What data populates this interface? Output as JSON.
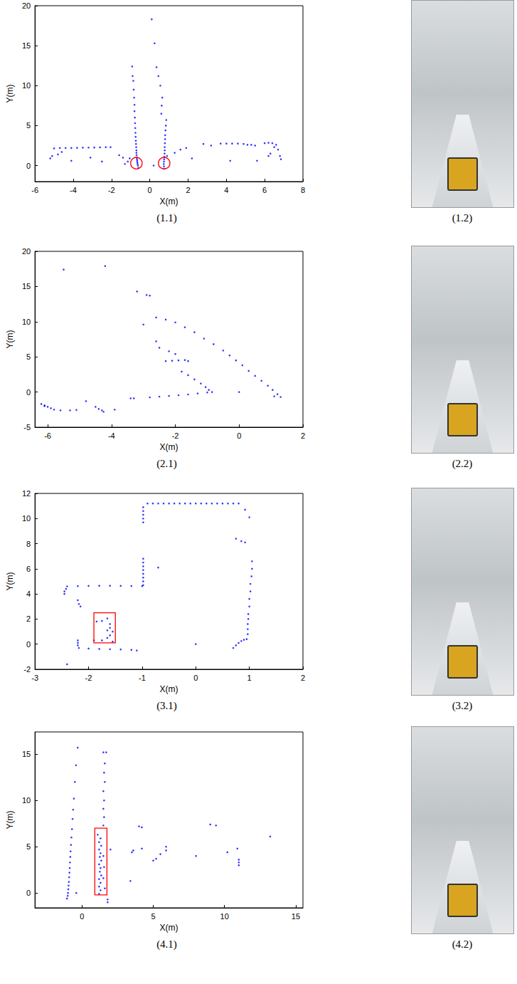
{
  "chart_data": [
    {
      "type": "scatter",
      "caption": "(1.1)",
      "x_label": "X(m)",
      "y_label": "Y(m)",
      "xlim": [
        -6,
        8
      ],
      "xticks": [
        -6,
        -4,
        -2,
        0,
        2,
        4,
        6,
        8
      ],
      "ylim": [
        -2,
        20
      ],
      "yticks": [
        0,
        5,
        10,
        15,
        20
      ],
      "grid": false,
      "color": "#0000ff",
      "marker": "dot",
      "points": [
        [
          -0.6,
          -0.3
        ],
        [
          -0.62,
          0
        ],
        [
          -0.64,
          0.2
        ],
        [
          -0.65,
          0.4
        ],
        [
          -0.66,
          0.6
        ],
        [
          -0.67,
          0.8
        ],
        [
          -0.68,
          1.0
        ],
        [
          -0.69,
          1.3
        ],
        [
          -0.7,
          1.6
        ],
        [
          -0.7,
          1.9
        ],
        [
          -0.71,
          2.3
        ],
        [
          -0.72,
          2.7
        ],
        [
          -0.73,
          3.1
        ],
        [
          -0.74,
          3.6
        ],
        [
          -0.75,
          4.1
        ],
        [
          -0.76,
          4.7
        ],
        [
          -0.77,
          5.3
        ],
        [
          -0.78,
          6
        ],
        [
          -0.8,
          6.8
        ],
        [
          -0.8,
          7.6
        ],
        [
          -0.82,
          8.5
        ],
        [
          -0.84,
          9.5
        ],
        [
          -0.86,
          10.6
        ],
        [
          -0.9,
          11.2
        ],
        [
          -0.92,
          12.4
        ],
        [
          0.75,
          -0.4
        ],
        [
          0.74,
          -0.1
        ],
        [
          0.73,
          0.2
        ],
        [
          0.74,
          0.5
        ],
        [
          0.75,
          0.8
        ],
        [
          0.76,
          1.1
        ],
        [
          0.77,
          1.5
        ],
        [
          0.78,
          1.9
        ],
        [
          0.78,
          2.3
        ],
        [
          0.79,
          2.8
        ],
        [
          0.8,
          3.3
        ],
        [
          0.8,
          3.8
        ],
        [
          0.82,
          4.4
        ],
        [
          0.84,
          5.0
        ],
        [
          0.86,
          5.7
        ],
        [
          0.6,
          6.5
        ],
        [
          0.62,
          7.5
        ],
        [
          0.65,
          8.5
        ],
        [
          0.55,
          10.0
        ],
        [
          0.45,
          11.2
        ],
        [
          0.35,
          12.3
        ],
        [
          0.25,
          15.3
        ],
        [
          0.1,
          18.3
        ],
        [
          -5,
          2.15
        ],
        [
          -4.7,
          2.2
        ],
        [
          -4.4,
          2.2
        ],
        [
          -4.1,
          2.2
        ],
        [
          -3.8,
          2.22
        ],
        [
          -3.5,
          2.24
        ],
        [
          -3.2,
          2.25
        ],
        [
          -2.9,
          2.26
        ],
        [
          -2.6,
          2.28
        ],
        [
          -2.3,
          2.3
        ],
        [
          -2.05,
          2.3
        ],
        [
          -5.1,
          1.2
        ],
        [
          -5.2,
          0.9
        ],
        [
          -4.8,
          1.4
        ],
        [
          -4.6,
          1.7
        ],
        [
          -4.1,
          0.6
        ],
        [
          -3.1,
          1.0
        ],
        [
          -2.5,
          0.5
        ],
        [
          -1.6,
          1.3
        ],
        [
          -1.4,
          1.0
        ],
        [
          -1.3,
          0.2
        ],
        [
          -1.15,
          0.5
        ],
        [
          -1.05,
          0.9
        ],
        [
          0.9,
          1.2
        ],
        [
          1.3,
          1.6
        ],
        [
          1.6,
          2.0
        ],
        [
          1.9,
          2.2
        ],
        [
          2.8,
          2.7
        ],
        [
          3.2,
          2.5
        ],
        [
          3.7,
          2.75
        ],
        [
          4,
          2.75
        ],
        [
          4.3,
          2.75
        ],
        [
          4.6,
          2.75
        ],
        [
          4.9,
          2.7
        ],
        [
          5.1,
          2.6
        ],
        [
          5.3,
          2.6
        ],
        [
          5.5,
          2.5
        ],
        [
          4.2,
          0.6
        ],
        [
          5.6,
          0.6
        ],
        [
          6,
          2.8
        ],
        [
          6.2,
          2.85
        ],
        [
          6.4,
          2.8
        ],
        [
          6.5,
          2.3
        ],
        [
          6.6,
          2.6
        ],
        [
          6.7,
          2.0
        ],
        [
          6.8,
          1.2
        ],
        [
          6.85,
          0.8
        ],
        [
          6.3,
          1.5
        ],
        [
          6.2,
          1.2
        ],
        [
          2.2,
          0.9
        ],
        [
          0.2,
          0.0
        ]
      ],
      "highlights": [
        {
          "shape": "circle",
          "color": "#ff0000",
          "x": -0.7,
          "y": 0.3,
          "r": 0.3
        },
        {
          "shape": "circle",
          "color": "#ff0000",
          "x": 0.75,
          "y": 0.3,
          "r": 0.3
        }
      ]
    },
    {
      "type": "scatter",
      "caption": "(2.1)",
      "x_label": "X(m)",
      "y_label": "Y(m)",
      "xlim": [
        -6.4,
        2
      ],
      "xticks": [
        -6,
        -4,
        -2,
        0,
        2
      ],
      "ylim": [
        -5,
        20
      ],
      "yticks": [
        -5,
        0,
        5,
        10,
        15,
        20
      ],
      "grid": false,
      "color": "#0000ff",
      "marker": "dot",
      "points": [
        [
          -2.6,
          10.6
        ],
        [
          -2.3,
          10.3
        ],
        [
          -2.0,
          9.9
        ],
        [
          -1.7,
          9.2
        ],
        [
          -1.4,
          8.5
        ],
        [
          -1.1,
          7.6
        ],
        [
          -0.8,
          6.8
        ],
        [
          -0.5,
          5.9
        ],
        [
          -0.3,
          5.2
        ],
        [
          -0.1,
          4.5
        ],
        [
          0.1,
          3.8
        ],
        [
          0.3,
          3.0
        ],
        [
          0.5,
          2.3
        ],
        [
          0.7,
          1.6
        ],
        [
          0.9,
          0.9
        ],
        [
          1.05,
          0.3
        ],
        [
          1.2,
          -0.3
        ],
        [
          1.3,
          -0.7
        ],
        [
          1.1,
          -0.6
        ],
        [
          -1.8,
          2.9
        ],
        [
          -1.6,
          2.4
        ],
        [
          -1.4,
          1.8
        ],
        [
          -1.2,
          1.2
        ],
        [
          -1.05,
          0.7
        ],
        [
          -0.95,
          0.3
        ],
        [
          -0.85,
          0.0
        ],
        [
          -2.3,
          4.4
        ],
        [
          -2.1,
          4.45
        ],
        [
          -1.9,
          4.5
        ],
        [
          -1.7,
          4.55
        ],
        [
          -1.6,
          4.4
        ],
        [
          -2.5,
          6.3
        ],
        [
          -2.2,
          5.8
        ],
        [
          -2.0,
          5.4
        ],
        [
          -2.6,
          7.2
        ],
        [
          -3.0,
          9.6
        ],
        [
          -2.9,
          13.8
        ],
        [
          -3.2,
          14.3
        ],
        [
          -2.8,
          13.7
        ],
        [
          -4.2,
          17.9
        ],
        [
          -5.5,
          17.4
        ],
        [
          -3.3,
          -0.9
        ],
        [
          -2.8,
          -0.75
        ],
        [
          -2.5,
          -0.65
        ],
        [
          -2.2,
          -0.55
        ],
        [
          -1.9,
          -0.45
        ],
        [
          -1.6,
          -0.35
        ],
        [
          -1.3,
          -0.2
        ],
        [
          -1.0,
          -0.05
        ],
        [
          0,
          0
        ],
        [
          -6.2,
          -1.7
        ],
        [
          -6.1,
          -1.9
        ],
        [
          -6.0,
          -2.1
        ],
        [
          -5.9,
          -2.3
        ],
        [
          -5.8,
          -2.5
        ],
        [
          -5.6,
          -2.6
        ],
        [
          -5.3,
          -2.6
        ],
        [
          -5.1,
          -2.55
        ],
        [
          -4.8,
          -1.3
        ],
        [
          -4.5,
          -2.1
        ],
        [
          -4.4,
          -2.4
        ],
        [
          -4.3,
          -2.6
        ],
        [
          -4.25,
          -2.8
        ],
        [
          -3.9,
          -2.5
        ],
        [
          -3.4,
          -0.9
        ],
        [
          -6.1,
          -2.0
        ]
      ],
      "highlights": []
    },
    {
      "type": "scatter",
      "caption": "(3.1)",
      "x_label": "X(m)",
      "y_label": "Y(m)",
      "xlim": [
        -3,
        2
      ],
      "xticks": [
        -3,
        -2,
        -1,
        0,
        1,
        2
      ],
      "ylim": [
        -2,
        12
      ],
      "yticks": [
        -2,
        0,
        2,
        4,
        6,
        8,
        10,
        12
      ],
      "grid": false,
      "color": "#0000ff",
      "marker": "dot",
      "points": [
        [
          -0.9,
          11.2
        ],
        [
          -0.8,
          11.2
        ],
        [
          -0.7,
          11.2
        ],
        [
          -0.6,
          11.2
        ],
        [
          -0.5,
          11.2
        ],
        [
          -0.4,
          11.2
        ],
        [
          -0.3,
          11.2
        ],
        [
          -0.2,
          11.2
        ],
        [
          -0.1,
          11.2
        ],
        [
          0,
          11.2
        ],
        [
          0.1,
          11.2
        ],
        [
          0.2,
          11.2
        ],
        [
          0.3,
          11.2
        ],
        [
          0.4,
          11.2
        ],
        [
          0.5,
          11.2
        ],
        [
          0.6,
          11.2
        ],
        [
          0.7,
          11.2
        ],
        [
          0.8,
          11.2
        ],
        [
          0.92,
          10.7
        ],
        [
          1.0,
          10.1
        ],
        [
          -0.98,
          4.7
        ],
        [
          -0.98,
          5.0
        ],
        [
          -0.98,
          5.3
        ],
        [
          -0.98,
          5.6
        ],
        [
          -0.98,
          5.9
        ],
        [
          -0.98,
          6.2
        ],
        [
          -0.98,
          6.5
        ],
        [
          -0.98,
          6.8
        ],
        [
          -0.98,
          9.7
        ],
        [
          -0.98,
          10.0
        ],
        [
          -0.98,
          10.3
        ],
        [
          -0.98,
          10.6
        ],
        [
          -0.98,
          10.9
        ],
        [
          -2.4,
          4.6
        ],
        [
          -2.2,
          4.62
        ],
        [
          -2.0,
          4.64
        ],
        [
          -1.8,
          4.65
        ],
        [
          -1.6,
          4.65
        ],
        [
          -1.4,
          4.64
        ],
        [
          -1.2,
          4.63
        ],
        [
          -1.0,
          4.62
        ],
        [
          -2.45,
          4.0
        ],
        [
          -2.45,
          4.2
        ],
        [
          -2.42,
          4.4
        ],
        [
          -2.4,
          -1.6
        ],
        [
          -0.7,
          6.1
        ],
        [
          -2.2,
          3.5
        ],
        [
          -2.18,
          3.2
        ],
        [
          -2.15,
          3.0
        ],
        [
          -2.2,
          0.3
        ],
        [
          -2.2,
          0.1
        ],
        [
          -2.2,
          -0.1
        ],
        [
          -2.18,
          -0.3
        ],
        [
          -2.0,
          -0.35
        ],
        [
          -1.8,
          -0.38
        ],
        [
          -1.6,
          -0.4
        ],
        [
          -1.4,
          -0.42
        ],
        [
          -1.2,
          -0.45
        ],
        [
          -1.1,
          -0.5
        ],
        [
          -1.85,
          1.8
        ],
        [
          -1.75,
          1.85
        ],
        [
          -1.65,
          2.05
        ],
        [
          -1.6,
          1.6
        ],
        [
          -1.6,
          1.3
        ],
        [
          -1.55,
          1.0
        ],
        [
          -1.6,
          0.7
        ],
        [
          -1.65,
          0.5
        ],
        [
          -1.55,
          0.2
        ],
        [
          -1.9,
          0.3
        ],
        [
          -1.75,
          0.3
        ],
        [
          -1.65,
          1.1
        ],
        [
          0.7,
          -0.3
        ],
        [
          0.75,
          -0.1
        ],
        [
          0.8,
          0.1
        ],
        [
          0.85,
          0.25
        ],
        [
          0.9,
          0.35
        ],
        [
          0.95,
          0.4
        ],
        [
          0.97,
          0.8
        ],
        [
          0.97,
          1.2
        ],
        [
          0.97,
          1.6
        ],
        [
          0.98,
          2.0
        ],
        [
          0.98,
          2.4
        ],
        [
          1.0,
          3.0
        ],
        [
          1.0,
          3.6
        ],
        [
          1.02,
          4.2
        ],
        [
          1.02,
          4.8
        ],
        [
          1.04,
          5.4
        ],
        [
          1.05,
          6.0
        ],
        [
          1.05,
          6.6
        ],
        [
          0.75,
          8.4
        ],
        [
          0.85,
          8.2
        ],
        [
          0.92,
          8.1
        ],
        [
          0,
          0
        ]
      ],
      "highlights": [
        {
          "shape": "rect",
          "color": "#ff0000",
          "x0": -1.9,
          "x1": -1.5,
          "y0": 0.1,
          "y1": 2.5
        }
      ]
    },
    {
      "type": "scatter",
      "caption": "(4.1)",
      "x_label": "X(m)",
      "y_label": "Y(m)",
      "xlim": [
        -3.3,
        15.5
      ],
      "xticks": [
        0,
        5,
        10,
        15
      ],
      "ylim": [
        -1.6,
        17.4
      ],
      "yticks": [
        0,
        5,
        10,
        15
      ],
      "grid": false,
      "color": "#0000ff",
      "marker": "dot",
      "points": [
        [
          -1.05,
          -0.6
        ],
        [
          -1.0,
          -0.3
        ],
        [
          -0.98,
          0
        ],
        [
          -0.96,
          0.4
        ],
        [
          -0.94,
          0.8
        ],
        [
          -0.92,
          1.2
        ],
        [
          -0.9,
          1.7
        ],
        [
          -0.88,
          2.2
        ],
        [
          -0.86,
          2.7
        ],
        [
          -0.84,
          3.3
        ],
        [
          -0.82,
          3.9
        ],
        [
          -0.8,
          4.5
        ],
        [
          -0.77,
          5.2
        ],
        [
          -0.74,
          6.0
        ],
        [
          -0.7,
          6.9
        ],
        [
          -0.66,
          8.0
        ],
        [
          -0.62,
          9.0
        ],
        [
          -0.57,
          10.2
        ],
        [
          -0.5,
          12.0
        ],
        [
          -0.42,
          13.8
        ],
        [
          -0.3,
          15.7
        ],
        [
          -0.4,
          0
        ],
        [
          1.2,
          -0.1
        ],
        [
          1.3,
          0.3
        ],
        [
          1.2,
          0.7
        ],
        [
          1.3,
          1.1
        ],
        [
          1.2,
          1.5
        ],
        [
          1.35,
          1.9
        ],
        [
          1.25,
          2.3
        ],
        [
          1.3,
          2.7
        ],
        [
          1.2,
          3.1
        ],
        [
          1.35,
          3.5
        ],
        [
          1.25,
          3.9
        ],
        [
          1.3,
          4.3
        ],
        [
          1.2,
          4.7
        ],
        [
          1.35,
          5.1
        ],
        [
          1.2,
          5.5
        ],
        [
          1.3,
          5.9
        ],
        [
          1.1,
          6.3
        ],
        [
          1.6,
          0.5
        ],
        [
          1.5,
          1.6
        ],
        [
          1.55,
          2.8
        ],
        [
          1.5,
          4.0
        ],
        [
          1.5,
          7.3
        ],
        [
          1.55,
          8.2
        ],
        [
          1.5,
          9.1
        ],
        [
          1.55,
          10.0
        ],
        [
          1.5,
          11.0
        ],
        [
          1.6,
          12.0
        ],
        [
          1.55,
          13.0
        ],
        [
          1.6,
          14.0
        ],
        [
          1.5,
          15.2
        ],
        [
          1.7,
          15.2
        ],
        [
          1.8,
          -1.0
        ],
        [
          1.8,
          -0.7
        ],
        [
          2.0,
          4.7
        ],
        [
          3.4,
          1.3
        ],
        [
          3.5,
          4.4
        ],
        [
          3.6,
          4.6
        ],
        [
          4.0,
          7.2
        ],
        [
          4.2,
          4.8
        ],
        [
          4.2,
          7.1
        ],
        [
          5.0,
          3.5
        ],
        [
          5.2,
          3.7
        ],
        [
          5.5,
          4.2
        ],
        [
          5.9,
          4.6
        ],
        [
          5.9,
          5.0
        ],
        [
          8.0,
          4.0
        ],
        [
          9.0,
          7.4
        ],
        [
          9.4,
          7.3
        ],
        [
          10.2,
          4.4
        ],
        [
          11.0,
          3.0
        ],
        [
          11.0,
          3.3
        ],
        [
          11.0,
          3.6
        ],
        [
          10.9,
          4.8
        ],
        [
          13.2,
          6.1
        ]
      ],
      "highlights": [
        {
          "shape": "rect",
          "color": "#ff0000",
          "x0": 0.9,
          "x1": 1.75,
          "y0": -0.2,
          "y1": 7
        }
      ]
    }
  ],
  "photos": [
    {
      "caption": "(1.2)"
    },
    {
      "caption": "(2.2)"
    },
    {
      "caption": "(3.2)"
    },
    {
      "caption": "(4.2)"
    }
  ]
}
